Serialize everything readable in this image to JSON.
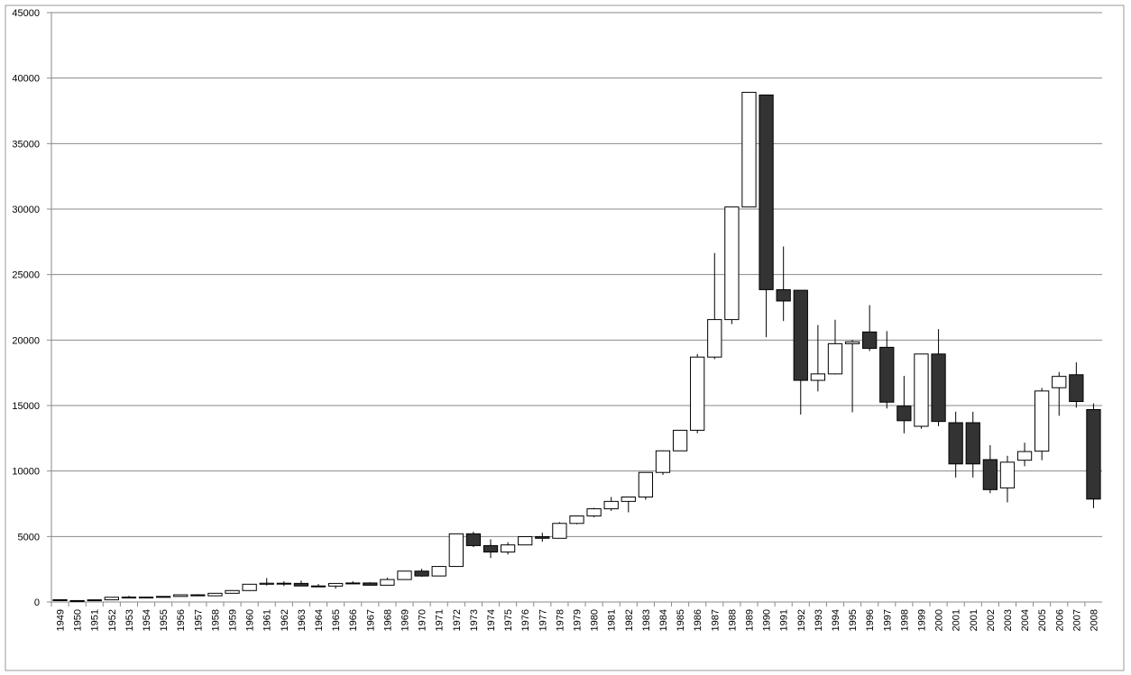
{
  "chart_data": {
    "type": "candlestick",
    "categories": [
      "1949",
      "1950",
      "1951",
      "1952",
      "1953",
      "1954",
      "1955",
      "1956",
      "1957",
      "1958",
      "1959",
      "1960",
      "1961",
      "1962",
      "1963",
      "1964",
      "1965",
      "1966",
      "1967",
      "1968",
      "1969",
      "1970",
      "1971",
      "1972",
      "1973",
      "1974",
      "1975",
      "1976",
      "1977",
      "1978",
      "1979",
      "1980",
      "1981",
      "1982",
      "1983",
      "1984",
      "1985",
      "1986",
      "1987",
      "1988",
      "1989",
      "1990",
      "1991",
      "1992",
      "1993",
      "1994",
      "1995",
      "1996",
      "1997",
      "1998",
      "1999",
      "2000",
      "2001",
      "2001",
      "2002",
      "2003",
      "2004",
      "2005",
      "2006",
      "2007",
      "2008"
    ],
    "open": [
      176,
      109,
      101,
      166,
      362,
      377,
      356,
      425,
      549,
      474,
      666,
      874,
      1356,
      1432,
      1420,
      1225,
      1216,
      1417,
      1452,
      1283,
      1715,
      2358,
      1987,
      2713,
      5207,
      4306,
      3817,
      4358,
      4990,
      4865,
      6001,
      6569,
      7116,
      7681,
      8016,
      9893,
      11542,
      13113,
      18701,
      21564,
      30159,
      38712,
      23848,
      23801,
      16924,
      17417,
      19723,
      20618,
      19446,
      14956,
      13416,
      18934,
      13691,
      13691,
      10871,
      8713,
      10825,
      11517,
      16361,
      17353,
      14691
    ],
    "high": [
      176,
      114,
      166,
      362,
      474,
      379,
      425,
      549,
      595,
      666,
      874,
      1356,
      1829,
      1589,
      1634,
      1369,
      1418,
      1588,
      1506,
      1851,
      2358,
      2534,
      2740,
      5207,
      5359,
      4787,
      4564,
      4990,
      5287,
      6097,
      6590,
      7188,
      8019,
      8026,
      9893,
      11577,
      13128,
      18936,
      26646,
      30159,
      38915,
      38712,
      27146,
      23801,
      21148,
      21552,
      20011,
      22666,
      20681,
      17264,
      18934,
      20833,
      14529,
      14529,
      11979,
      11161,
      12163,
      16344,
      17563,
      18300,
      15156
    ],
    "low": [
      85,
      85,
      98,
      163,
      295,
      315,
      348,
      425,
      471,
      474,
      666,
      874,
      1258,
      1216,
      1200,
      1202,
      1020,
      1364,
      1250,
      1266,
      1715,
      1929,
      1981,
      2712,
      4188,
      3355,
      3627,
      4358,
      4597,
      4867,
      5934,
      6475,
      6957,
      6849,
      7803,
      9703,
      11545,
      12881,
      18544,
      21217,
      30183,
      20221,
      21456,
      14309,
      16078,
      17369,
      14485,
      19161,
      14775,
      12879,
      13232,
      13423,
      9504,
      9504,
      8303,
      7607,
      10365,
      10825,
      14218,
      14837,
      7162
    ],
    "close": [
      109,
      101,
      166,
      362,
      377,
      356,
      425,
      549,
      474,
      666,
      874,
      1356,
      1432,
      1420,
      1225,
      1216,
      1417,
      1452,
      1283,
      1715,
      2358,
      1987,
      2713,
      5207,
      4306,
      3817,
      4358,
      4990,
      4865,
      6001,
      6569,
      7116,
      7681,
      8016,
      9893,
      11542,
      13113,
      18701,
      21564,
      30159,
      38915,
      23848,
      22983,
      16924,
      17417,
      19723,
      19868,
      19361,
      15258,
      13842,
      18934,
      13785,
      10542,
      10542,
      8578,
      10676,
      11488,
      16111,
      17225,
      15307,
      7859
    ],
    "up_color": "#ffffff",
    "down_color": "#333333",
    "ylim": [
      0,
      45000
    ],
    "yticks": [
      0,
      5000,
      10000,
      15000,
      20000,
      25000,
      30000,
      35000,
      40000,
      45000
    ],
    "grid": true
  }
}
